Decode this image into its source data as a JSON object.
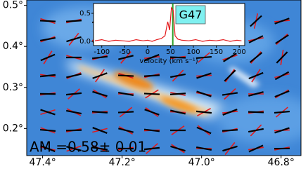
{
  "chart_data": [
    {
      "type": "map",
      "xlim": [
        47.44,
        46.75
      ],
      "ylim": [
        0.134,
        0.513
      ],
      "xticks": [
        {
          "value": 47.4,
          "label": "47.4°"
        },
        {
          "value": 47.2,
          "label": "47.2°"
        },
        {
          "value": 47.0,
          "label": "47.0°"
        },
        {
          "value": 46.8,
          "label": "46.8°"
        }
      ],
      "yticks": [
        {
          "value": 0.2,
          "label": "0.2°"
        },
        {
          "value": 0.3,
          "label": "0.3°"
        },
        {
          "value": 0.4,
          "label": "0.4°"
        },
        {
          "value": 0.5,
          "label": "0.5°"
        }
      ],
      "annotation": "AM =0.58± 0.01"
    },
    {
      "type": "line",
      "label": "G47",
      "xlabel": "velocity (km s⁻¹)",
      "xlim": [
        -118,
        212
      ],
      "ylim": [
        -0.075,
        0.675
      ],
      "xticks": [
        -100,
        -50,
        0,
        50,
        100,
        150,
        200
      ],
      "yticks": [
        {
          "value": 0,
          "label": "0.0"
        },
        0.5
      ],
      "marker_x": 55,
      "marker_color": "#2ca02c",
      "series": [
        {
          "color": "#e31a1c",
          "x": [
            -115,
            -100,
            -85,
            -70,
            -55,
            -40,
            -25,
            -10,
            0,
            10,
            20,
            30,
            38,
            44,
            48,
            52,
            56,
            60,
            66,
            75,
            90,
            105,
            120,
            135,
            150,
            165,
            180,
            195,
            205
          ],
          "values": [
            0.01,
            0.03,
            0.0,
            0.02,
            0.01,
            0.0,
            0.03,
            0.01,
            0.02,
            0.0,
            0.03,
            0.05,
            0.1,
            0.35,
            0.2,
            0.6,
            0.55,
            0.1,
            0.04,
            0.02,
            0.01,
            0.03,
            0.0,
            0.02,
            0.01,
            0.03,
            0.0,
            0.02,
            0.01
          ]
        }
      ]
    }
  ]
}
